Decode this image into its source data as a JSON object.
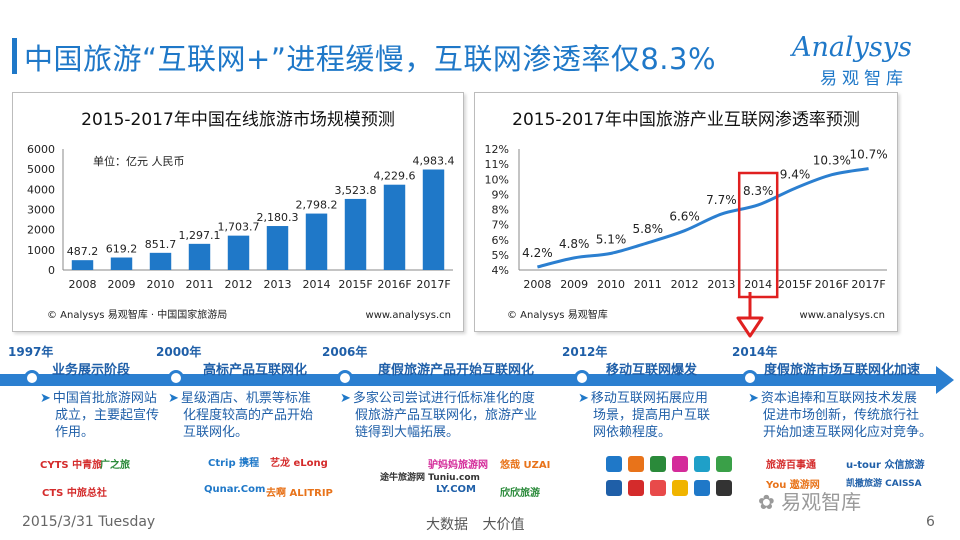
{
  "page": {
    "title": "中国旅游“互联网+”进程缓慢，互联网渗透率仅8.3%",
    "logo_main": "Analysys",
    "logo_sub": "易观智库",
    "footer_date": "2015/3/31 Tuesday",
    "footer_mid": "大数据 大价值",
    "page_number": "6",
    "watermark": "易观智库"
  },
  "colors": {
    "accent": "#1f78c8",
    "bar": "#1f78c8",
    "line": "#2b7fd0",
    "highlight": "#e02020"
  },
  "chart_data": [
    {
      "type": "bar",
      "title": "2015-2017年中国在线旅游市场规模预测",
      "unit_label": "单位：亿元 人民币",
      "categories": [
        "2008",
        "2009",
        "2010",
        "2011",
        "2012",
        "2013",
        "2014",
        "2015F",
        "2016F",
        "2017F"
      ],
      "values": [
        487.2,
        619.2,
        851.7,
        1297.1,
        1703.7,
        2180.3,
        2798.2,
        3523.8,
        4229.6,
        4983.4
      ],
      "value_labels": [
        "487.2",
        "619.2",
        "851.7",
        "1,297.1",
        "1,703.7",
        "2,180.3",
        "2,798.2",
        "3,523.8",
        "4,229.6",
        "4,983.4"
      ],
      "ylim": [
        0,
        6000
      ],
      "yticks": [
        "0",
        "1000",
        "2000",
        "3000",
        "4000",
        "5000",
        "6000"
      ],
      "source": "© Analysys 易观智库 · 中国国家旅游局",
      "website": "www.analysys.cn"
    },
    {
      "type": "line",
      "title": "2015-2017年中国旅游产业互联网渗透率预测",
      "categories": [
        "2008",
        "2009",
        "2010",
        "2011",
        "2012",
        "2013",
        "2014",
        "2015F",
        "2016F",
        "2017F"
      ],
      "values": [
        4.2,
        4.8,
        5.1,
        5.8,
        6.6,
        7.7,
        8.3,
        9.4,
        10.3,
        10.7
      ],
      "value_labels": [
        "4.2%",
        "4.8%",
        "5.1%",
        "5.8%",
        "6.6%",
        "7.7%",
        "8.3%",
        "9.4%",
        "10.3%",
        "10.7%"
      ],
      "ylim": [
        4,
        12
      ],
      "yticks": [
        "4%",
        "5%",
        "6%",
        "7%",
        "8%",
        "9%",
        "10%",
        "11%",
        "12%"
      ],
      "highlight_category": "2014",
      "source": "© Analysys 易观智库",
      "website": "www.analysys.cn"
    }
  ],
  "timeline": [
    {
      "year": "1997年",
      "phase": "业务展示阶段",
      "desc": [
        "中国首批旅游网站",
        "成立，主要起宣传",
        "作用。"
      ],
      "logos": [
        "CYTS 中青旅",
        "广之旅",
        "CTS 中旅总社"
      ]
    },
    {
      "year": "2000年",
      "phase": "高标产品互联网化",
      "desc": [
        "星级酒店、机票等标准",
        "化程度较高的产品开始",
        "互联网化。"
      ],
      "logos": [
        "Ctrip 携程",
        "艺龙 eLong",
        "Qunar.Com",
        "去啊 ALITRIP"
      ]
    },
    {
      "year": "2006年",
      "phase": "度假旅游产品开始互联网化",
      "desc": [
        "多家公司尝试进行低标准化的度",
        "假旅游产品互联网化，旅游产业",
        "链得到大幅拓展。"
      ],
      "logos": [
        "途牛旅游网 Tuniu.com",
        "驴妈妈旅游网",
        "悠哉 UZAI",
        "LY.COM",
        "欣欣旅游"
      ]
    },
    {
      "year": "2012年",
      "phase": "移动互联网爆发",
      "desc": [
        "移动互联网拓展应用",
        "场景，提高用户互联",
        "网依赖程度。"
      ],
      "logos": []
    },
    {
      "year": "2014年",
      "phase": "度假旅游市场互联网化加速",
      "desc": [
        "资本追捧和互联网技术发展",
        "促进市场创新，传统旅行社",
        "开始加速互联网化应对竞争。"
      ],
      "logos": [
        "旅游百事通",
        "u-tour 众信旅游",
        "凯撒旅游 CAISSA",
        "You 遨游网"
      ]
    }
  ]
}
